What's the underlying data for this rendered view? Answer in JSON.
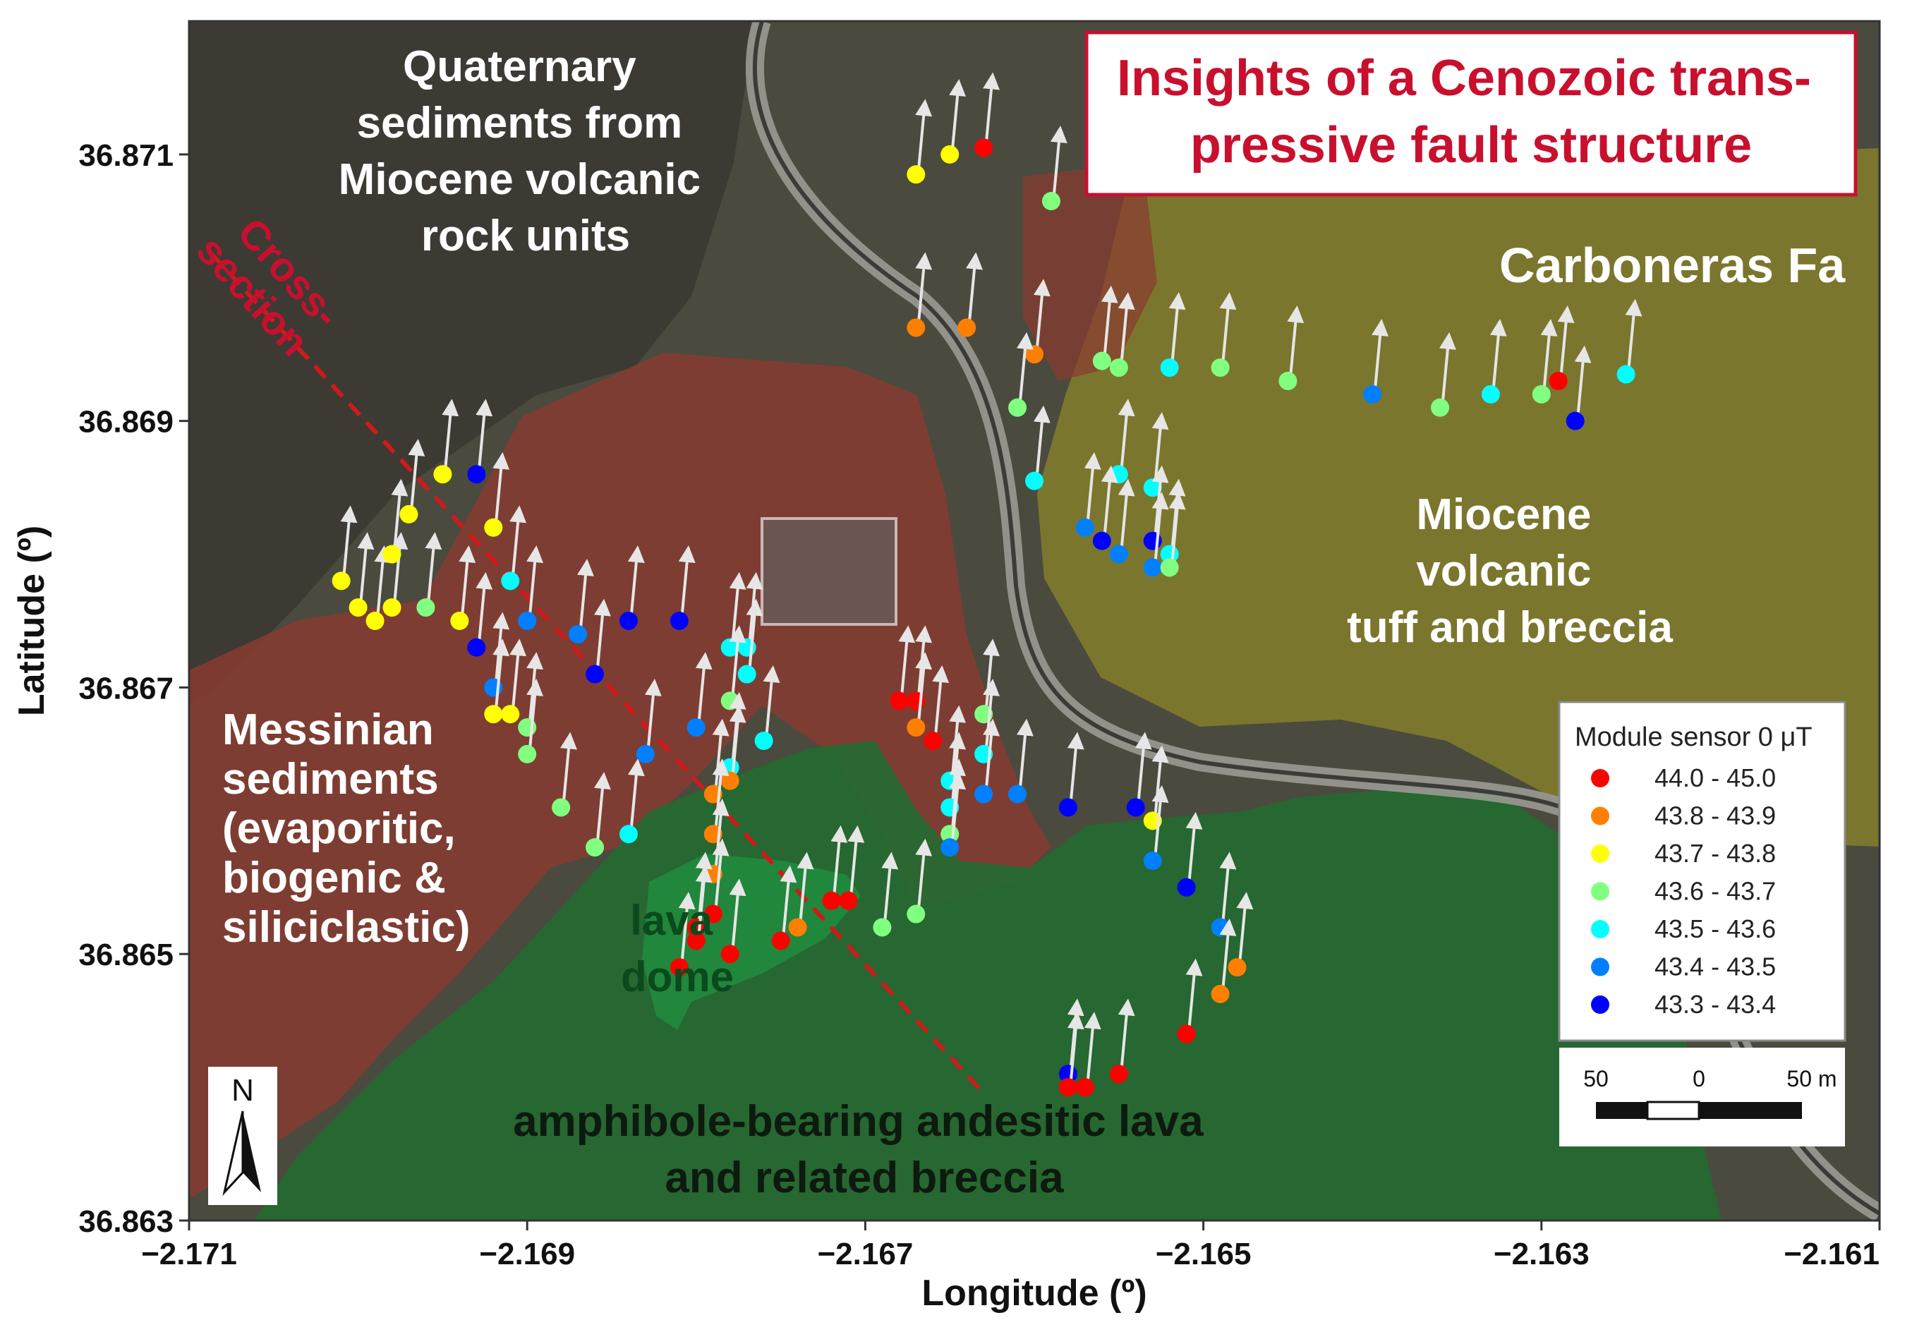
{
  "map": {
    "title_lines": [
      "Insights of a Cenozoic trans-",
      "pressive fault structure"
    ],
    "xlabel": "Longitude (º)",
    "ylabel": "Latitude (º)",
    "xlim": [
      -2.171,
      -2.161
    ],
    "ylim": [
      36.863,
      36.872
    ],
    "x_ticks": [
      "-2.171",
      "-2.169",
      "-2.167",
      "-2.165",
      "-2.163",
      "-2.161"
    ],
    "y_ticks": [
      "36.863",
      "36.865",
      "36.867",
      "36.869",
      "36.871"
    ],
    "units": {
      "quaternary": [
        "Quaternary",
        "sediments from",
        "Miocene volcanic",
        "rock units"
      ],
      "miocene_tuff": [
        "Miocene",
        "volcanic",
        "tuff and breccia"
      ],
      "messinian": [
        "Messinian",
        "sediments",
        "(evaporitic,",
        "biogenic &",
        "siliciclastic)"
      ],
      "lava_dome": [
        "lava",
        "dome"
      ],
      "andesitic": [
        "amphibole-bearing andesitic lava",
        "and related breccia"
      ]
    },
    "fault_label": "Carboneras Fa",
    "cross_section_label": [
      "Cross-",
      "section"
    ],
    "legend": {
      "title": "Module sensor 0 μT",
      "items": [
        {
          "label": "44.0 - 45.0",
          "color": "#ff0000"
        },
        {
          "label": "43.8 - 43.9",
          "color": "#ff8000"
        },
        {
          "label": "43.7 - 43.8",
          "color": "#ffff00"
        },
        {
          "label": "43.6 - 43.7",
          "color": "#80ff80"
        },
        {
          "label": "43.5 - 43.6",
          "color": "#00ffff"
        },
        {
          "label": "43.4 - 43.5",
          "color": "#0080ff"
        },
        {
          "label": "43.3 - 43.4",
          "color": "#0000ff"
        }
      ]
    },
    "scale_bar": {
      "left": "50",
      "mid": "0",
      "right": "50 m"
    },
    "north_label": "N"
  },
  "chart_data": {
    "type": "scatter",
    "title": "Insights of a Cenozoic trans-pressive fault structure",
    "xlabel": "Longitude (º)",
    "ylabel": "Latitude (º)",
    "xlim": [
      -2.171,
      -2.161
    ],
    "ylim": [
      36.863,
      36.872
    ],
    "legend_title": "Module sensor 0 μT",
    "legend_placement": "right",
    "classes": [
      "44.0 - 45.0",
      "43.8 - 43.9",
      "43.7 - 43.8",
      "43.6 - 43.7",
      "43.5 - 43.6",
      "43.4 - 43.5",
      "43.3 - 43.4"
    ],
    "points": [
      {
        "lon": -2.1663,
        "lat": 36.87105,
        "class": 0
      },
      {
        "lon": -2.1665,
        "lat": 36.871,
        "class": 2
      },
      {
        "lon": -2.1667,
        "lat": 36.87085,
        "class": 2
      },
      {
        "lon": -2.1659,
        "lat": 36.87065,
        "class": 3
      },
      {
        "lon": -2.1667,
        "lat": 36.8697,
        "class": 1
      },
      {
        "lon": -2.1664,
        "lat": 36.8697,
        "class": 1
      },
      {
        "lon": -2.166,
        "lat": 36.8695,
        "class": 1
      },
      {
        "lon": -2.1656,
        "lat": 36.86945,
        "class": 3
      },
      {
        "lon": -2.1655,
        "lat": 36.8694,
        "class": 3
      },
      {
        "lon": -2.1652,
        "lat": 36.8694,
        "class": 4
      },
      {
        "lon": -2.1649,
        "lat": 36.8694,
        "class": 3
      },
      {
        "lon": -2.1645,
        "lat": 36.8693,
        "class": 3
      },
      {
        "lon": -2.164,
        "lat": 36.8692,
        "class": 5
      },
      {
        "lon": -2.1636,
        "lat": 36.8691,
        "class": 3
      },
      {
        "lon": -2.1633,
        "lat": 36.8692,
        "class": 4
      },
      {
        "lon": -2.163,
        "lat": 36.8692,
        "class": 3
      },
      {
        "lon": -2.1629,
        "lat": 36.8693,
        "class": 0
      },
      {
        "lon": -2.1628,
        "lat": 36.869,
        "class": 6
      },
      {
        "lon": -2.1625,
        "lat": 36.86935,
        "class": 4
      },
      {
        "lon": -2.1661,
        "lat": 36.8691,
        "class": 3
      },
      {
        "lon": -2.166,
        "lat": 36.86855,
        "class": 4
      },
      {
        "lon": -2.1655,
        "lat": 36.8686,
        "class": 4
      },
      {
        "lon": -2.1653,
        "lat": 36.8685,
        "class": 4
      },
      {
        "lon": -2.1657,
        "lat": 36.8682,
        "class": 5
      },
      {
        "lon": -2.1656,
        "lat": 36.8681,
        "class": 6
      },
      {
        "lon": -2.1655,
        "lat": 36.868,
        "class": 5
      },
      {
        "lon": -2.1653,
        "lat": 36.8681,
        "class": 6
      },
      {
        "lon": -2.1653,
        "lat": 36.8679,
        "class": 5
      },
      {
        "lon": -2.1652,
        "lat": 36.868,
        "class": 4
      },
      {
        "lon": -2.1652,
        "lat": 36.8679,
        "class": 3
      },
      {
        "lon": -2.1701,
        "lat": 36.8678,
        "class": 2
      },
      {
        "lon": -2.17,
        "lat": 36.8676,
        "class": 2
      },
      {
        "lon": -2.1699,
        "lat": 36.8675,
        "class": 2
      },
      {
        "lon": -2.1698,
        "lat": 36.8676,
        "class": 2
      },
      {
        "lon": -2.1697,
        "lat": 36.8683,
        "class": 2
      },
      {
        "lon": -2.1698,
        "lat": 36.868,
        "class": 2
      },
      {
        "lon": -2.1695,
        "lat": 36.8686,
        "class": 2
      },
      {
        "lon": -2.1696,
        "lat": 36.8676,
        "class": 3
      },
      {
        "lon": -2.1694,
        "lat": 36.8675,
        "class": 2
      },
      {
        "lon": -2.1693,
        "lat": 36.8686,
        "class": 6
      },
      {
        "lon": -2.1692,
        "lat": 36.8682,
        "class": 2
      },
      {
        "lon": -2.1691,
        "lat": 36.8678,
        "class": 4
      },
      {
        "lon": -2.169,
        "lat": 36.8675,
        "class": 5
      },
      {
        "lon": -2.1687,
        "lat": 36.8674,
        "class": 5
      },
      {
        "lon": -2.1684,
        "lat": 36.8675,
        "class": 6
      },
      {
        "lon": -2.1681,
        "lat": 36.8675,
        "class": 6
      },
      {
        "lon": -2.1693,
        "lat": 36.8673,
        "class": 6
      },
      {
        "lon": -2.1692,
        "lat": 36.867,
        "class": 5
      },
      {
        "lon": -2.1692,
        "lat": 36.8668,
        "class": 2
      },
      {
        "lon": -2.1691,
        "lat": 36.8668,
        "class": 2
      },
      {
        "lon": -2.169,
        "lat": 36.8667,
        "class": 3
      },
      {
        "lon": -2.169,
        "lat": 36.8665,
        "class": 3
      },
      {
        "lon": -2.1688,
        "lat": 36.8661,
        "class": 3
      },
      {
        "lon": -2.1686,
        "lat": 36.8658,
        "class": 3
      },
      {
        "lon": -2.1684,
        "lat": 36.8659,
        "class": 4
      },
      {
        "lon": -2.1686,
        "lat": 36.8671,
        "class": 6
      },
      {
        "lon": -2.1683,
        "lat": 36.8665,
        "class": 5
      },
      {
        "lon": -2.168,
        "lat": 36.8667,
        "class": 5
      },
      {
        "lon": -2.1678,
        "lat": 36.8673,
        "class": 4
      },
      {
        "lon": -2.1677,
        "lat": 36.8673,
        "class": 4
      },
      {
        "lon": -2.1677,
        "lat": 36.8671,
        "class": 4
      },
      {
        "lon": -2.1678,
        "lat": 36.8669,
        "class": 3
      },
      {
        "lon": -2.1676,
        "lat": 36.8666,
        "class": 4
      },
      {
        "lon": -2.1678,
        "lat": 36.8664,
        "class": 4
      },
      {
        "lon": -2.1678,
        "lat": 36.8663,
        "class": 1
      },
      {
        "lon": -2.1679,
        "lat": 36.8662,
        "class": 1
      },
      {
        "lon": -2.1679,
        "lat": 36.8659,
        "class": 1
      },
      {
        "lon": -2.1679,
        "lat": 36.8656,
        "class": 1
      },
      {
        "lon": -2.1679,
        "lat": 36.8653,
        "class": 0
      },
      {
        "lon": -2.168,
        "lat": 36.8652,
        "class": 0
      },
      {
        "lon": -2.168,
        "lat": 36.8651,
        "class": 0
      },
      {
        "lon": -2.1681,
        "lat": 36.8649,
        "class": 0
      },
      {
        "lon": -2.1678,
        "lat": 36.865,
        "class": 0
      },
      {
        "lon": -2.1675,
        "lat": 36.8651,
        "class": 0
      },
      {
        "lon": -2.1674,
        "lat": 36.8652,
        "class": 1
      },
      {
        "lon": -2.1672,
        "lat": 36.8654,
        "class": 0
      },
      {
        "lon": -2.1671,
        "lat": 36.8654,
        "class": 0
      },
      {
        "lon": -2.1669,
        "lat": 36.8652,
        "class": 3
      },
      {
        "lon": -2.1667,
        "lat": 36.8653,
        "class": 3
      },
      {
        "lon": -2.1668,
        "lat": 36.8669,
        "class": 0
      },
      {
        "lon": -2.1667,
        "lat": 36.8669,
        "class": 0
      },
      {
        "lon": -2.1667,
        "lat": 36.8667,
        "class": 1
      },
      {
        "lon": -2.1666,
        "lat": 36.8666,
        "class": 0
      },
      {
        "lon": -2.1665,
        "lat": 36.8663,
        "class": 4
      },
      {
        "lon": -2.1665,
        "lat": 36.8661,
        "class": 4
      },
      {
        "lon": -2.1665,
        "lat": 36.8659,
        "class": 3
      },
      {
        "lon": -2.1665,
        "lat": 36.8658,
        "class": 5
      },
      {
        "lon": -2.1663,
        "lat": 36.8668,
        "class": 3
      },
      {
        "lon": -2.1663,
        "lat": 36.8665,
        "class": 4
      },
      {
        "lon": -2.1663,
        "lat": 36.8662,
        "class": 5
      },
      {
        "lon": -2.1661,
        "lat": 36.8662,
        "class": 5
      },
      {
        "lon": -2.1658,
        "lat": 36.8661,
        "class": 6
      },
      {
        "lon": -2.1654,
        "lat": 36.8661,
        "class": 6
      },
      {
        "lon": -2.1653,
        "lat": 36.866,
        "class": 2
      },
      {
        "lon": -2.1653,
        "lat": 36.8657,
        "class": 5
      },
      {
        "lon": -2.1651,
        "lat": 36.8655,
        "class": 6
      },
      {
        "lon": -2.1649,
        "lat": 36.8652,
        "class": 5
      },
      {
        "lon": -2.1648,
        "lat": 36.8649,
        "class": 1
      },
      {
        "lon": -2.1649,
        "lat": 36.8647,
        "class": 1
      },
      {
        "lon": -2.1651,
        "lat": 36.8644,
        "class": 0
      },
      {
        "lon": -2.1655,
        "lat": 36.8641,
        "class": 0
      },
      {
        "lon": -2.1657,
        "lat": 36.864,
        "class": 0
      },
      {
        "lon": -2.1658,
        "lat": 36.8641,
        "class": 6
      },
      {
        "lon": -2.1658,
        "lat": 36.864,
        "class": 0
      }
    ]
  }
}
